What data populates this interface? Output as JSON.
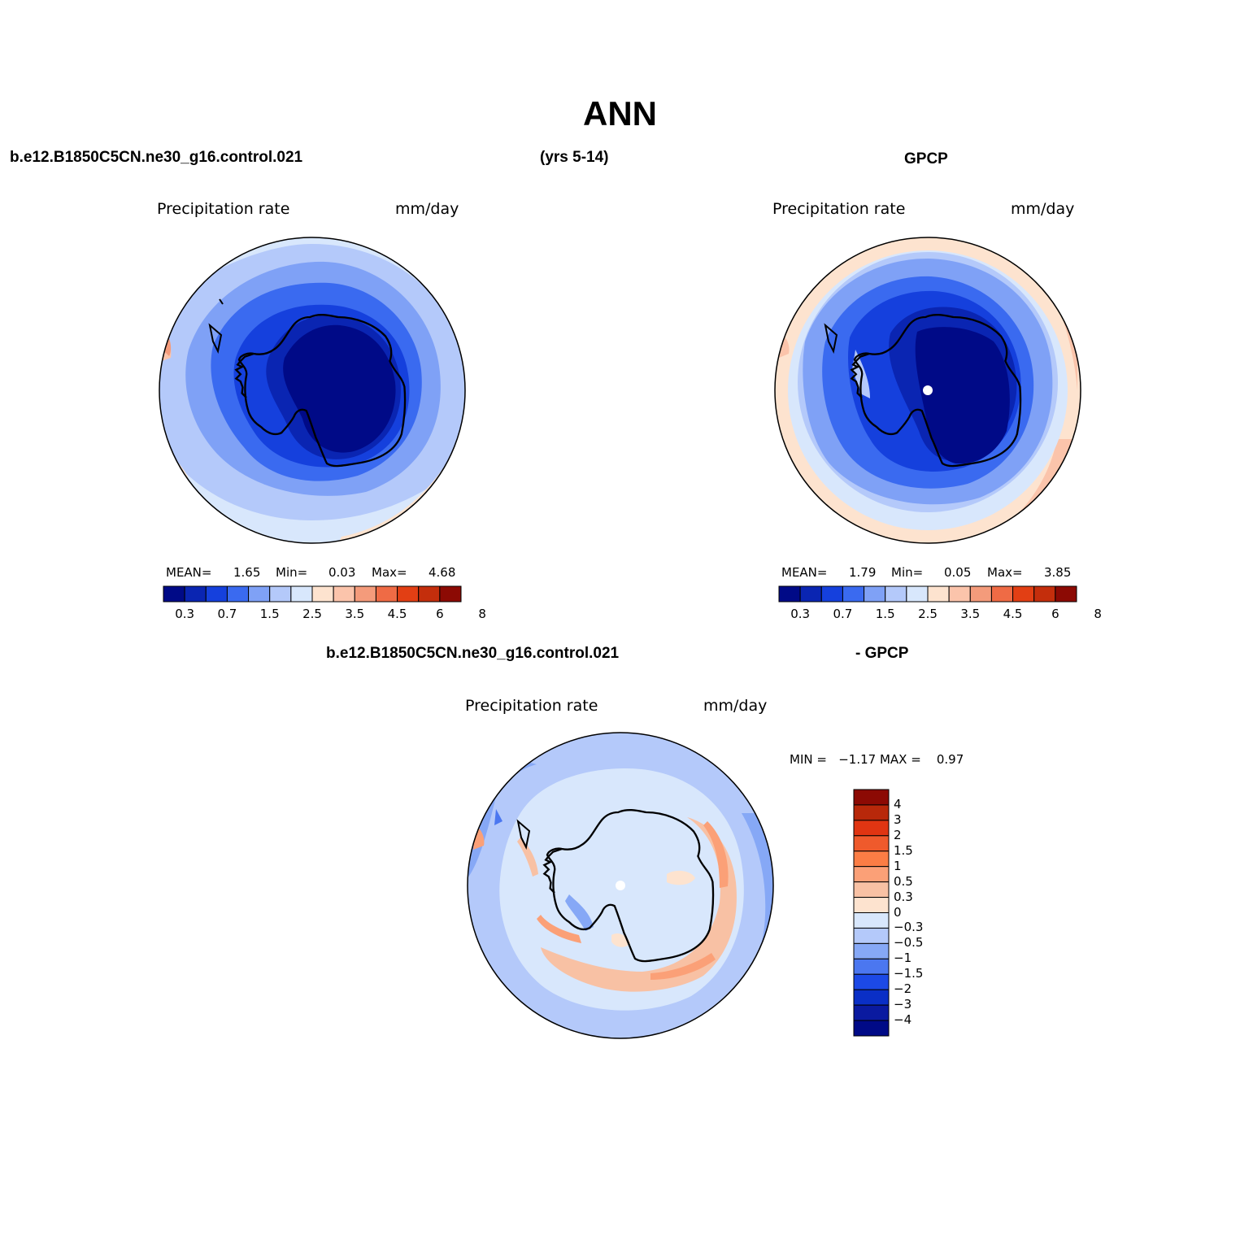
{
  "title": "ANN",
  "header": {
    "left_case": "b.e12.B1850C5CN.ne30_g16.control.021",
    "years": "(yrs 5-14)",
    "right_case": "GPCP"
  },
  "panels": [
    {
      "variable": "Precipitation rate",
      "units": "mm/day",
      "mean_label": "MEAN=",
      "mean": "1.65",
      "min_label": "Min=",
      "min": "0.03",
      "max_label": "Max=",
      "max": "4.68",
      "colorbar_labels": [
        "0.3",
        "0.7",
        "1.5",
        "2.5",
        "3.5",
        "4.5",
        "6",
        "8"
      ]
    },
    {
      "variable": "Precipitation rate",
      "units": "mm/day",
      "mean_label": "MEAN=",
      "mean": "1.79",
      "min_label": "Min=",
      "min": "0.05",
      "max_label": "Max=",
      "max": "3.85",
      "colorbar_labels": [
        "0.3",
        "0.7",
        "1.5",
        "2.5",
        "3.5",
        "4.5",
        "6",
        "8"
      ]
    }
  ],
  "diff": {
    "case_left": "b.e12.B1850C5CN.ne30_g16.control.021",
    "case_right": "- GPCP",
    "variable": "Precipitation rate",
    "units": "mm/day",
    "minmax": "MIN =   −1.17 MAX =    0.97",
    "colorbar_labels": [
      "4",
      "3",
      "2",
      "1.5",
      "1",
      "0.5",
      "0.3",
      "0",
      "−0.3",
      "−0.5",
      "−1",
      "−1.5",
      "−2",
      "−3",
      "−4"
    ]
  },
  "colors": {
    "abs_scale": [
      "#000a87",
      "#0a25b2",
      "#1540dd",
      "#3a6af0",
      "#7fa1f6",
      "#b4c9fa",
      "#d8e7fc",
      "#fde3cf",
      "#fbc4ab",
      "#f49b7b",
      "#ef6b45",
      "#e23f14",
      "#c42e0c",
      "#8c0a04"
    ],
    "diff_scale": [
      "#8c0a04",
      "#b8280a",
      "#e03512",
      "#ef5a2c",
      "#fb7d45",
      "#fba077",
      "#f8c1a4",
      "#fde3cf",
      "#d8e7fc",
      "#b4c9fa",
      "#86a8f6",
      "#4b77f0",
      "#1c49e6",
      "#0a2fc6",
      "#0a1aa0",
      "#000a87"
    ]
  }
}
